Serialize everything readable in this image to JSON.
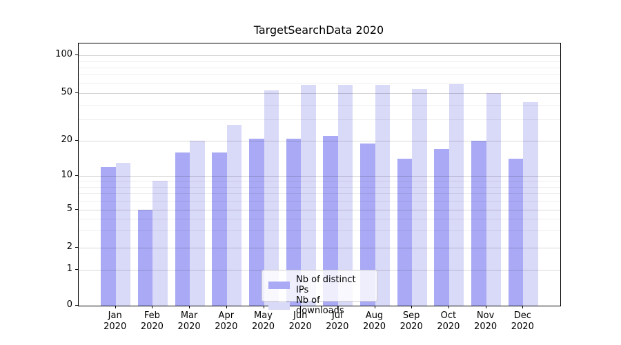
{
  "title": "TargetSearchData 2020",
  "colors": {
    "distinct_ips": "#a9a9f5",
    "downloads": "#d9d9f8",
    "grid_major": "#d4d4d4",
    "grid_minor": "#efefef",
    "spine": "#000000",
    "background": "#ffffff"
  },
  "legend": {
    "items": [
      {
        "label": "Nb of distinct IPs",
        "color": "#a9a9f5"
      },
      {
        "label": "Nb of downloads",
        "color": "#d9d9f8"
      }
    ],
    "position": "lower center"
  },
  "chart_data": {
    "type": "bar",
    "title": "TargetSearchData 2020",
    "categories": [
      "Jan",
      "Feb",
      "Mar",
      "Apr",
      "May",
      "Jun",
      "Jul",
      "Aug",
      "Sep",
      "Oct",
      "Nov",
      "Dec"
    ],
    "category_year": "2020",
    "series": [
      {
        "name": "Nb of distinct IPs",
        "color": "#a9a9f5",
        "values": [
          12,
          5,
          16,
          16,
          21,
          21,
          22,
          19,
          14,
          17,
          20,
          14
        ]
      },
      {
        "name": "Nb of downloads",
        "color": "#d9d9f8",
        "values": [
          13,
          9,
          20,
          27,
          52,
          58,
          58,
          58,
          54,
          59,
          50,
          42
        ]
      }
    ],
    "xlabel": "",
    "ylabel": "",
    "yscale": "symlog",
    "ylim": [
      0,
      125
    ],
    "yticks": [
      0,
      1,
      2,
      5,
      10,
      20,
      50,
      100
    ],
    "yticks_minor": [
      3,
      4,
      6,
      7,
      8,
      9,
      30,
      40,
      60,
      70,
      80,
      90
    ],
    "grid": true,
    "bar_width_ratio": 0.4,
    "legend_position": "lower center"
  }
}
